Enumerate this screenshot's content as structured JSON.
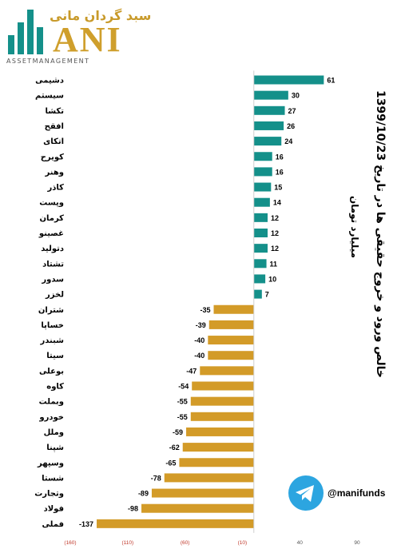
{
  "brand": {
    "name_fa": "سبد گردان مانی",
    "name": "ANI",
    "tagline": "ASSETMANAGEMENT"
  },
  "telegram": {
    "handle": "@manifunds",
    "icon": "telegram-icon",
    "color": "#2ca5e0"
  },
  "colors": {
    "positive": "#14908a",
    "negative": "#d39b28"
  },
  "chart_data": {
    "type": "bar",
    "orientation": "horizontal",
    "title": "خالص ورود و خروج حقیقی ها در تاریخ 1399/10/23",
    "subtitle": "میلیارد تومان",
    "categories": [
      "دشیمی",
      "سیستم",
      "تکشا",
      "افقح",
      "اتکای",
      "کویرح",
      "وهنر",
      "کاذر",
      "وپست",
      "کرمان",
      "غصینو",
      "دتولید",
      "تشتاد",
      "سدور",
      "لخزر",
      "شتران",
      "خساپا",
      "شبندر",
      "سیتا",
      "بوعلی",
      "کاوه",
      "وبملت",
      "خودرو",
      "وملل",
      "شپنا",
      "وسپهر",
      "شستا",
      "وتجارت",
      "فولاد",
      "فملی"
    ],
    "values": [
      61,
      30,
      27,
      26,
      24,
      16,
      16,
      15,
      14,
      12,
      12,
      12,
      11,
      10,
      7,
      -35,
      -39,
      -40,
      -40,
      -47,
      -54,
      -55,
      -55,
      -59,
      -62,
      -65,
      -78,
      -89,
      -98,
      -137
    ],
    "value_labels": [
      "61",
      "30",
      "27",
      "26",
      "24",
      "16",
      "16",
      "15",
      "14",
      "12",
      "12",
      "12",
      "11",
      "10",
      "7",
      "-35",
      "-39",
      "-40",
      "-40",
      "-47",
      "-54",
      "-55",
      "-55",
      "-59",
      "-62",
      "-65",
      "-78",
      "-89",
      "-98",
      "-137"
    ],
    "xlim": [
      -160,
      90
    ],
    "x_ticks": [
      -160,
      -110,
      -60,
      -10,
      40,
      90
    ],
    "x_tick_labels": [
      "(160)",
      "(110)",
      "(60)",
      "(10)",
      "40",
      "90"
    ],
    "grid": false,
    "legend": "none"
  }
}
